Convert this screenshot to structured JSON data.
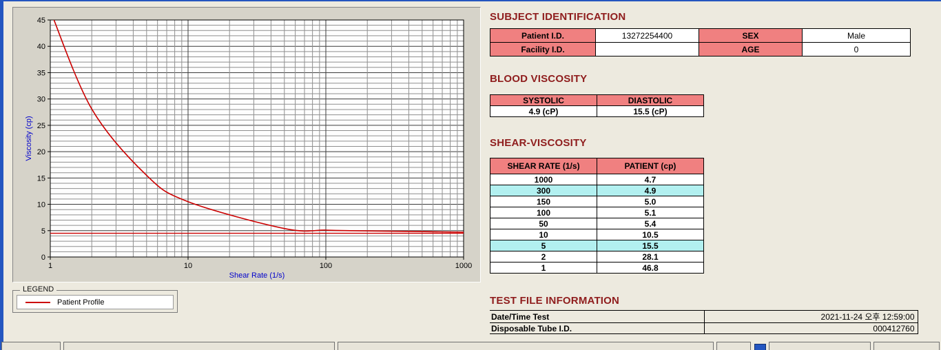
{
  "colors": {
    "accent": "#8f1d1d",
    "table_header_bg": "#f08080",
    "highlight_bg": "#b2f0f0",
    "line": "#cc0000",
    "axis_label": "#0000cc",
    "window_border": "#2456c0"
  },
  "chart": {
    "ylabel": "Viscosity (cp)",
    "xlabel": "Shear Rate (1/s)",
    "y_ticks": [
      0,
      5,
      10,
      15,
      20,
      25,
      30,
      35,
      40,
      45
    ],
    "x_ticks": [
      1,
      10,
      100,
      1000
    ],
    "legend_title": "LEGEND",
    "legend_series": "Patient Profile"
  },
  "chart_data": {
    "type": "line",
    "xscale": "log",
    "xlim": [
      1,
      1000
    ],
    "ylim": [
      0,
      45
    ],
    "grid": true,
    "xlabel": "Shear Rate (1/s)",
    "ylabel": "Viscosity (cp)",
    "x": [
      1,
      2,
      5,
      10,
      50,
      100,
      150,
      300,
      1000
    ],
    "series": [
      {
        "name": "Patient Profile",
        "values": [
          46.8,
          28.1,
          15.5,
          10.5,
          5.4,
          5.1,
          5.0,
          4.9,
          4.7
        ]
      }
    ],
    "reference_line": 4.5
  },
  "subject": {
    "title": "SUBJECT IDENTIFICATION",
    "rows": [
      {
        "label1": "Patient I.D.",
        "value1": "13272254400",
        "label2": "SEX",
        "value2": "Male"
      },
      {
        "label1": "Facility I.D.",
        "value1": "",
        "label2": "AGE",
        "value2": "0"
      }
    ]
  },
  "blood_viscosity": {
    "title": "BLOOD VISCOSITY",
    "headers": [
      "SYSTOLIC",
      "DIASTOLIC"
    ],
    "values": [
      "4.9 (cP)",
      "15.5 (cP)"
    ]
  },
  "shear_viscosity": {
    "title": "SHEAR-VISCOSITY",
    "headers": [
      "SHEAR RATE (1/s)",
      "PATIENT (cp)"
    ],
    "rows": [
      {
        "rate": "1000",
        "value": "4.7",
        "highlight": false
      },
      {
        "rate": "300",
        "value": "4.9",
        "highlight": true
      },
      {
        "rate": "150",
        "value": "5.0",
        "highlight": false
      },
      {
        "rate": "100",
        "value": "5.1",
        "highlight": false
      },
      {
        "rate": "50",
        "value": "5.4",
        "highlight": false
      },
      {
        "rate": "10",
        "value": "10.5",
        "highlight": false
      },
      {
        "rate": "5",
        "value": "15.5",
        "highlight": true
      },
      {
        "rate": "2",
        "value": "28.1",
        "highlight": false
      },
      {
        "rate": "1",
        "value": "46.8",
        "highlight": false
      }
    ]
  },
  "test_file": {
    "title": "TEST FILE INFORMATION",
    "rows": [
      {
        "label": "Date/Time Test",
        "value": "2021-11-24  오후 12:59:00"
      },
      {
        "label": "Disposable Tube I.D.",
        "value": "000412760"
      }
    ]
  }
}
